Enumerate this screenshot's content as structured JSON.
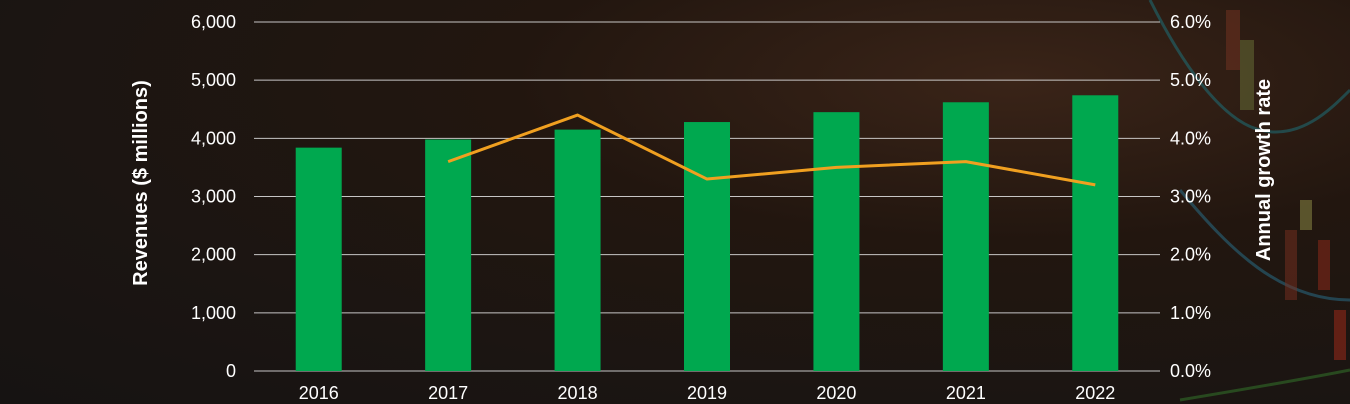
{
  "chart_data": {
    "type": "bar",
    "categories": [
      "2016",
      "2017",
      "2018",
      "2019",
      "2020",
      "2021",
      "2022"
    ],
    "series": [
      {
        "type": "bar",
        "axis": "left",
        "values": [
          3840,
          3980,
          4150,
          4280,
          4450,
          4620,
          4740
        ],
        "color": "#00a84f"
      },
      {
        "type": "line",
        "axis": "right",
        "values": [
          null,
          3.6,
          4.4,
          3.3,
          3.5,
          3.6,
          3.2
        ],
        "color": "#f0a020"
      }
    ],
    "ylabel": "Revenues ($ millions)",
    "y2label": "Annual growth rate",
    "ylim": [
      0,
      6000
    ],
    "y2lim": [
      0,
      6.0
    ],
    "yticks": [
      "0",
      "1,000",
      "2,000",
      "3,000",
      "4,000",
      "5,000",
      "6,000"
    ],
    "y2ticks": [
      "0.0%",
      "1.0%",
      "2.0%",
      "3.0%",
      "4.0%",
      "5.0%",
      "6.0%"
    ],
    "grid": true
  }
}
